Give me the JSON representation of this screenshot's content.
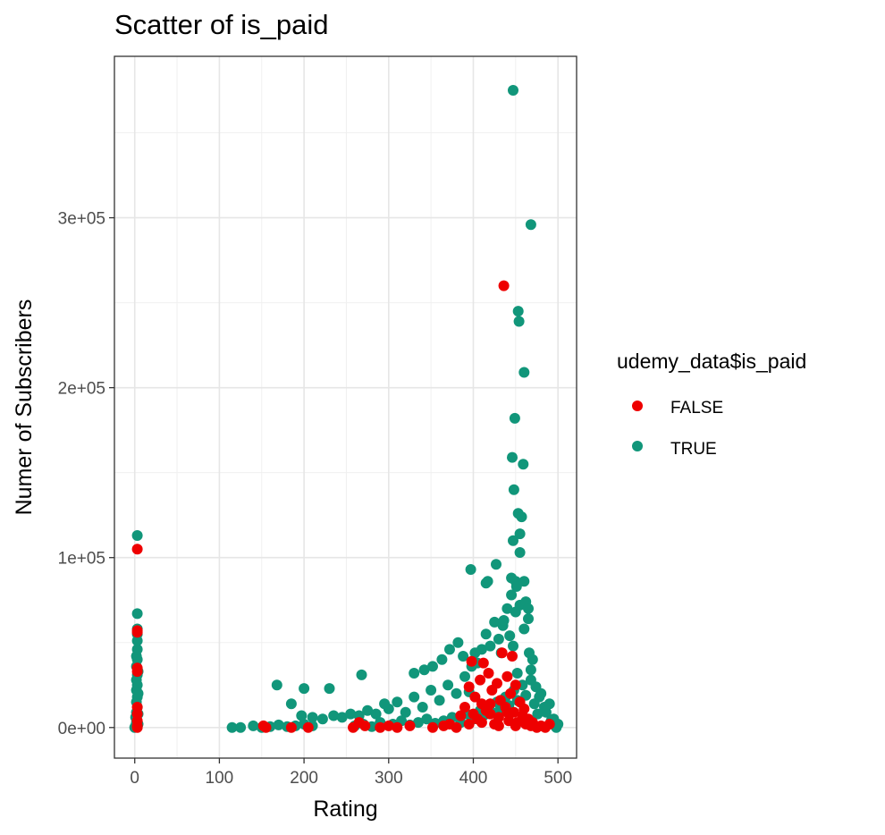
{
  "chart_data": {
    "type": "scatter",
    "title": "Scatter of is_paid",
    "xlabel": "Rating",
    "ylabel": "Numer of Subscribers",
    "xlim": [
      -24,
      522
    ],
    "ylim": [
      -18000,
      395000
    ],
    "x_ticks": [
      0,
      100,
      200,
      300,
      400,
      500
    ],
    "x_tick_labels": [
      "0",
      "100",
      "200",
      "300",
      "400",
      "500"
    ],
    "y_ticks": [
      0,
      100000,
      200000,
      300000
    ],
    "y_tick_labels": [
      "0e+00",
      "1e+05",
      "2e+05",
      "3e+05"
    ],
    "grid": true,
    "legend": {
      "title": "udemy_data$is_paid",
      "position": "right",
      "entries": [
        {
          "label": "FALSE",
          "color": "#ee0000"
        },
        {
          "label": "TRUE",
          "color": "#11967a"
        }
      ]
    },
    "series": [
      {
        "name": "TRUE",
        "color": "#11967a",
        "points": [
          [
            0,
            0
          ],
          [
            1,
            1000
          ],
          [
            2,
            3000
          ],
          [
            1,
            6000
          ],
          [
            2,
            9000
          ],
          [
            3,
            12000
          ],
          [
            2,
            15000
          ],
          [
            3,
            18000
          ],
          [
            2,
            22000
          ],
          [
            3,
            25000
          ],
          [
            2,
            28000
          ],
          [
            3,
            31000
          ],
          [
            2,
            36000
          ],
          [
            3,
            40000
          ],
          [
            2,
            42000
          ],
          [
            3,
            46000
          ],
          [
            3,
            51000
          ],
          [
            3,
            55000
          ],
          [
            3,
            58000
          ],
          [
            3,
            67000
          ],
          [
            3,
            113000
          ],
          [
            4,
            2000
          ],
          [
            4,
            8000
          ],
          [
            4,
            20000
          ],
          [
            4,
            33000
          ],
          [
            115,
            0
          ],
          [
            125,
            0
          ],
          [
            140,
            1000
          ],
          [
            150,
            0
          ],
          [
            160,
            500
          ],
          [
            170,
            1500
          ],
          [
            180,
            500
          ],
          [
            190,
            1000
          ],
          [
            200,
            2000
          ],
          [
            210,
            1000
          ],
          [
            168,
            25000
          ],
          [
            200,
            23000
          ],
          [
            230,
            23000
          ],
          [
            268,
            31000
          ],
          [
            185,
            14000
          ],
          [
            197,
            7000
          ],
          [
            210,
            6000
          ],
          [
            222,
            5000
          ],
          [
            235,
            7000
          ],
          [
            245,
            6000
          ],
          [
            255,
            8000
          ],
          [
            265,
            7000
          ],
          [
            275,
            10000
          ],
          [
            285,
            8000
          ],
          [
            295,
            14000
          ],
          [
            300,
            11000
          ],
          [
            310,
            15000
          ],
          [
            320,
            9000
          ],
          [
            330,
            18000
          ],
          [
            340,
            12000
          ],
          [
            350,
            22000
          ],
          [
            360,
            16000
          ],
          [
            370,
            25000
          ],
          [
            380,
            20000
          ],
          [
            390,
            30000
          ],
          [
            395,
            21000
          ],
          [
            405,
            38000
          ],
          [
            410,
            46000
          ],
          [
            415,
            55000
          ],
          [
            420,
            48000
          ],
          [
            425,
            62000
          ],
          [
            430,
            52000
          ],
          [
            435,
            60000
          ],
          [
            440,
            70000
          ],
          [
            445,
            78000
          ],
          [
            450,
            68000
          ],
          [
            455,
            72000
          ],
          [
            460,
            58000
          ],
          [
            465,
            64000
          ],
          [
            470,
            40000
          ],
          [
            480,
            20000
          ],
          [
            490,
            14000
          ],
          [
            495,
            5000
          ],
          [
            500,
            2000
          ],
          [
            498,
            0
          ],
          [
            397,
            93000
          ],
          [
            415,
            85000
          ],
          [
            417,
            86000
          ],
          [
            427,
            96000
          ],
          [
            436,
            63000
          ],
          [
            445,
            88000
          ],
          [
            447,
            110000
          ],
          [
            450,
            86000
          ],
          [
            451,
            83000
          ],
          [
            453,
            126000
          ],
          [
            455,
            114000
          ],
          [
            457,
            124000
          ],
          [
            455,
            103000
          ],
          [
            460,
            86000
          ],
          [
            462,
            74000
          ],
          [
            465,
            70000
          ],
          [
            448,
            140000
          ],
          [
            446,
            159000
          ],
          [
            459,
            155000
          ],
          [
            449,
            182000
          ],
          [
            460,
            209000
          ],
          [
            454,
            239000
          ],
          [
            453,
            245000
          ],
          [
            468,
            296000
          ],
          [
            447,
            375000
          ],
          [
            260,
            1000
          ],
          [
            270,
            2000
          ],
          [
            280,
            500
          ],
          [
            290,
            3000
          ],
          [
            305,
            2000
          ],
          [
            315,
            4000
          ],
          [
            325,
            1500
          ],
          [
            335,
            3000
          ],
          [
            345,
            5000
          ],
          [
            355,
            2500
          ],
          [
            365,
            4000
          ],
          [
            375,
            6000
          ],
          [
            385,
            3000
          ],
          [
            392,
            8000
          ],
          [
            400,
            5000
          ],
          [
            408,
            10000
          ],
          [
            412,
            7000
          ],
          [
            418,
            12000
          ],
          [
            422,
            9000
          ],
          [
            428,
            15000
          ],
          [
            432,
            11000
          ],
          [
            438,
            18000
          ],
          [
            442,
            13000
          ],
          [
            448,
            22000
          ],
          [
            452,
            16000
          ],
          [
            458,
            25000
          ],
          [
            462,
            19000
          ],
          [
            468,
            28000
          ],
          [
            472,
            14000
          ],
          [
            476,
            8000
          ],
          [
            330,
            32000
          ],
          [
            342,
            34000
          ],
          [
            352,
            36000
          ],
          [
            363,
            40000
          ],
          [
            372,
            46000
          ],
          [
            382,
            50000
          ],
          [
            388,
            42000
          ],
          [
            398,
            36000
          ],
          [
            402,
            44000
          ],
          [
            433,
            44000
          ],
          [
            443,
            54000
          ],
          [
            447,
            48000
          ],
          [
            452,
            32000
          ],
          [
            468,
            34000
          ],
          [
            478,
            18000
          ],
          [
            486,
            9000
          ],
          [
            492,
            4000
          ],
          [
            484,
            12000
          ],
          [
            474,
            24000
          ],
          [
            466,
            44000
          ]
        ]
      },
      {
        "name": "FALSE",
        "color": "#ee0000",
        "points": [
          [
            3,
            105000
          ],
          [
            3,
            57000
          ],
          [
            3,
            56000
          ],
          [
            3,
            35000
          ],
          [
            3,
            33000
          ],
          [
            3,
            12000
          ],
          [
            3,
            8000
          ],
          [
            3,
            4000
          ],
          [
            3,
            1000
          ],
          [
            3,
            0
          ],
          [
            152,
            1000
          ],
          [
            155,
            0
          ],
          [
            185,
            0
          ],
          [
            205,
            0
          ],
          [
            258,
            0
          ],
          [
            265,
            3000
          ],
          [
            272,
            1000
          ],
          [
            290,
            0
          ],
          [
            300,
            1000
          ],
          [
            310,
            0
          ],
          [
            325,
            1000
          ],
          [
            352,
            0
          ],
          [
            365,
            1000
          ],
          [
            372,
            2000
          ],
          [
            380,
            0
          ],
          [
            385,
            7000
          ],
          [
            390,
            12000
          ],
          [
            395,
            24000
          ],
          [
            398,
            39000
          ],
          [
            402,
            18000
          ],
          [
            405,
            5000
          ],
          [
            408,
            28000
          ],
          [
            410,
            14000
          ],
          [
            412,
            38000
          ],
          [
            415,
            10000
          ],
          [
            418,
            32000
          ],
          [
            420,
            8000
          ],
          [
            422,
            22000
          ],
          [
            425,
            2000
          ],
          [
            428,
            26000
          ],
          [
            430,
            6000
          ],
          [
            432,
            16000
          ],
          [
            434,
            44000
          ],
          [
            436,
            260000
          ],
          [
            438,
            12000
          ],
          [
            440,
            30000
          ],
          [
            442,
            4000
          ],
          [
            444,
            20000
          ],
          [
            446,
            42000
          ],
          [
            448,
            9000
          ],
          [
            450,
            25000
          ],
          [
            452,
            3000
          ],
          [
            455,
            15000
          ],
          [
            458,
            7000
          ],
          [
            460,
            11000
          ],
          [
            462,
            2000
          ],
          [
            465,
            5000
          ],
          [
            468,
            1000
          ],
          [
            470,
            3000
          ],
          [
            475,
            0
          ],
          [
            480,
            1000
          ],
          [
            485,
            0
          ],
          [
            490,
            2000
          ],
          [
            395,
            2000
          ],
          [
            400,
            8000
          ],
          [
            410,
            3000
          ],
          [
            420,
            14000
          ],
          [
            430,
            1000
          ],
          [
            440,
            9000
          ],
          [
            450,
            1000
          ]
        ]
      }
    ]
  }
}
